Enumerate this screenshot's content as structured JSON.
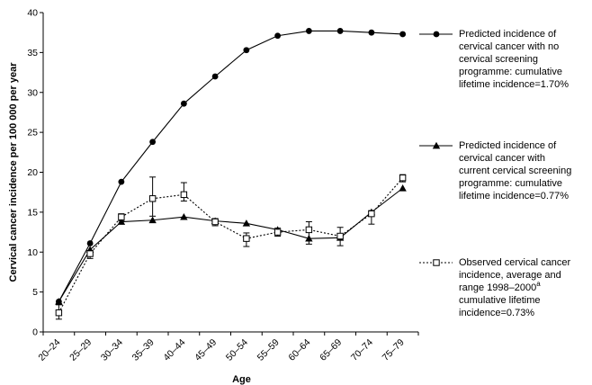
{
  "chart_data": {
    "type": "line",
    "categories": [
      "20–24",
      "25–29",
      "30–34",
      "35–39",
      "40–44",
      "45–49",
      "50–54",
      "55–59",
      "60–64",
      "65–69",
      "70–74",
      "75–79"
    ],
    "xlabel": "Age",
    "ylabel": "Cervical cancer incidence per 100 000 per year",
    "ylim": [
      0,
      40
    ],
    "yticks": [
      0,
      5,
      10,
      15,
      20,
      25,
      30,
      35,
      40
    ],
    "grid": false,
    "legend_position": "right",
    "series": [
      {
        "key": "no_screening",
        "name_lines": [
          "Predicted incidence of",
          "cervical cancer with no",
          "cervical screening",
          "programme: cumulative",
          "lifetime incidence=1.70%"
        ],
        "marker": "filled-circle",
        "line": "solid",
        "values": [
          3.8,
          11.1,
          18.8,
          23.8,
          28.6,
          32.0,
          35.3,
          37.1,
          37.7,
          37.7,
          37.5,
          37.3
        ]
      },
      {
        "key": "current_screening",
        "name_lines": [
          "Predicted incidence of",
          "cervical cancer with",
          "current cervical screening",
          "programme: cumulative",
          "lifetime incidence=0.77%"
        ],
        "marker": "filled-triangle",
        "line": "solid",
        "values": [
          3.8,
          10.3,
          13.8,
          14.0,
          14.4,
          13.9,
          13.6,
          12.8,
          11.7,
          11.8,
          15.0,
          18.0
        ]
      },
      {
        "key": "observed",
        "name_lines": [
          "Observed cervical cancer",
          "incidence, average and",
          "range 1998–2000",
          "cumulative lifetime",
          "incidence=0.73%"
        ],
        "superscript": "a",
        "marker": "open-square",
        "line": "dotted",
        "values": [
          2.4,
          9.8,
          14.4,
          16.7,
          17.2,
          13.8,
          11.7,
          12.5,
          12.8,
          12.0,
          14.8,
          19.3
        ],
        "range_low": [
          1.6,
          9.2,
          13.9,
          14.5,
          16.4,
          13.3,
          10.7,
          12.0,
          11.0,
          10.8,
          13.5,
          18.8
        ],
        "range_high": [
          3.4,
          10.2,
          14.8,
          19.4,
          18.7,
          14.2,
          12.4,
          13.0,
          13.8,
          13.1,
          15.2,
          19.7
        ]
      }
    ]
  }
}
